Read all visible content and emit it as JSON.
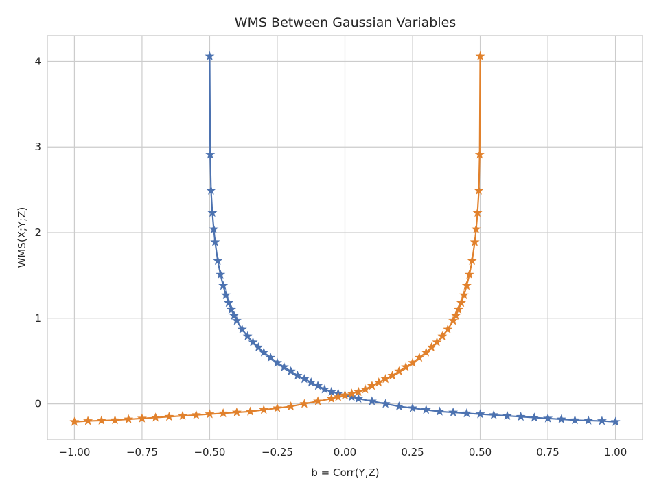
{
  "chart_data": {
    "type": "line",
    "title": "WMS Between Gaussian Variables",
    "xlabel": "b = Corr(Y,Z)",
    "ylabel": "WMS(X;Y;Z)",
    "xlim": [
      -1.1,
      1.1
    ],
    "ylim": [
      -0.42,
      4.3
    ],
    "x_ticks": [
      -1.0,
      -0.75,
      -0.5,
      -0.25,
      0.0,
      0.25,
      0.5,
      0.75,
      1.0
    ],
    "x_tick_labels": [
      "−1.00",
      "−0.75",
      "−0.50",
      "−0.25",
      "0.00",
      "0.25",
      "0.50",
      "0.75",
      "1.00"
    ],
    "y_ticks": [
      0,
      1,
      2,
      3,
      4
    ],
    "y_tick_labels": [
      "0",
      "1",
      "2",
      "3",
      "4"
    ],
    "grid": true,
    "marker": "star",
    "series": [
      {
        "color": "#4c72b0",
        "x": [
          -0.5,
          -0.498,
          -0.495,
          -0.49,
          -0.485,
          -0.48,
          -0.47,
          -0.46,
          -0.45,
          -0.44,
          -0.43,
          -0.42,
          -0.41,
          -0.4,
          -0.38,
          -0.36,
          -0.34,
          -0.32,
          -0.3,
          -0.275,
          -0.25,
          -0.225,
          -0.2,
          -0.175,
          -0.15,
          -0.125,
          -0.1,
          -0.075,
          -0.05,
          -0.025,
          0.0,
          0.025,
          0.05,
          0.1,
          0.15,
          0.2,
          0.25,
          0.3,
          0.35,
          0.4,
          0.45,
          0.5,
          0.55,
          0.6,
          0.65,
          0.7,
          0.75,
          0.8,
          0.85,
          0.9,
          0.95,
          1.0
        ],
        "y": [
          4.06,
          2.91,
          2.49,
          2.23,
          2.04,
          1.89,
          1.67,
          1.51,
          1.38,
          1.27,
          1.18,
          1.1,
          1.03,
          0.97,
          0.87,
          0.79,
          0.72,
          0.66,
          0.6,
          0.54,
          0.48,
          0.43,
          0.38,
          0.33,
          0.29,
          0.25,
          0.21,
          0.17,
          0.14,
          0.12,
          0.1,
          0.08,
          0.06,
          0.03,
          0.0,
          -0.03,
          -0.05,
          -0.07,
          -0.09,
          -0.1,
          -0.11,
          -0.12,
          -0.13,
          -0.14,
          -0.15,
          -0.16,
          -0.17,
          -0.18,
          -0.19,
          -0.195,
          -0.2,
          -0.21
        ]
      },
      {
        "color": "#e1812c",
        "x": [
          -1.0,
          -0.95,
          -0.9,
          -0.85,
          -0.8,
          -0.75,
          -0.7,
          -0.65,
          -0.6,
          -0.55,
          -0.5,
          -0.45,
          -0.4,
          -0.35,
          -0.3,
          -0.25,
          -0.2,
          -0.15,
          -0.1,
          -0.05,
          -0.025,
          0.0,
          0.025,
          0.05,
          0.075,
          0.1,
          0.125,
          0.15,
          0.175,
          0.2,
          0.225,
          0.25,
          0.275,
          0.3,
          0.32,
          0.34,
          0.36,
          0.38,
          0.4,
          0.41,
          0.42,
          0.43,
          0.44,
          0.45,
          0.46,
          0.47,
          0.48,
          0.485,
          0.49,
          0.495,
          0.498,
          0.5
        ],
        "y": [
          -0.21,
          -0.2,
          -0.195,
          -0.19,
          -0.18,
          -0.17,
          -0.16,
          -0.15,
          -0.14,
          -0.13,
          -0.12,
          -0.11,
          -0.1,
          -0.09,
          -0.07,
          -0.05,
          -0.03,
          0.0,
          0.03,
          0.06,
          0.08,
          0.1,
          0.12,
          0.14,
          0.17,
          0.21,
          0.25,
          0.29,
          0.33,
          0.38,
          0.43,
          0.48,
          0.54,
          0.6,
          0.66,
          0.72,
          0.79,
          0.87,
          0.97,
          1.03,
          1.1,
          1.18,
          1.27,
          1.38,
          1.51,
          1.67,
          1.89,
          2.04,
          2.23,
          2.49,
          2.91,
          4.06
        ]
      }
    ]
  }
}
